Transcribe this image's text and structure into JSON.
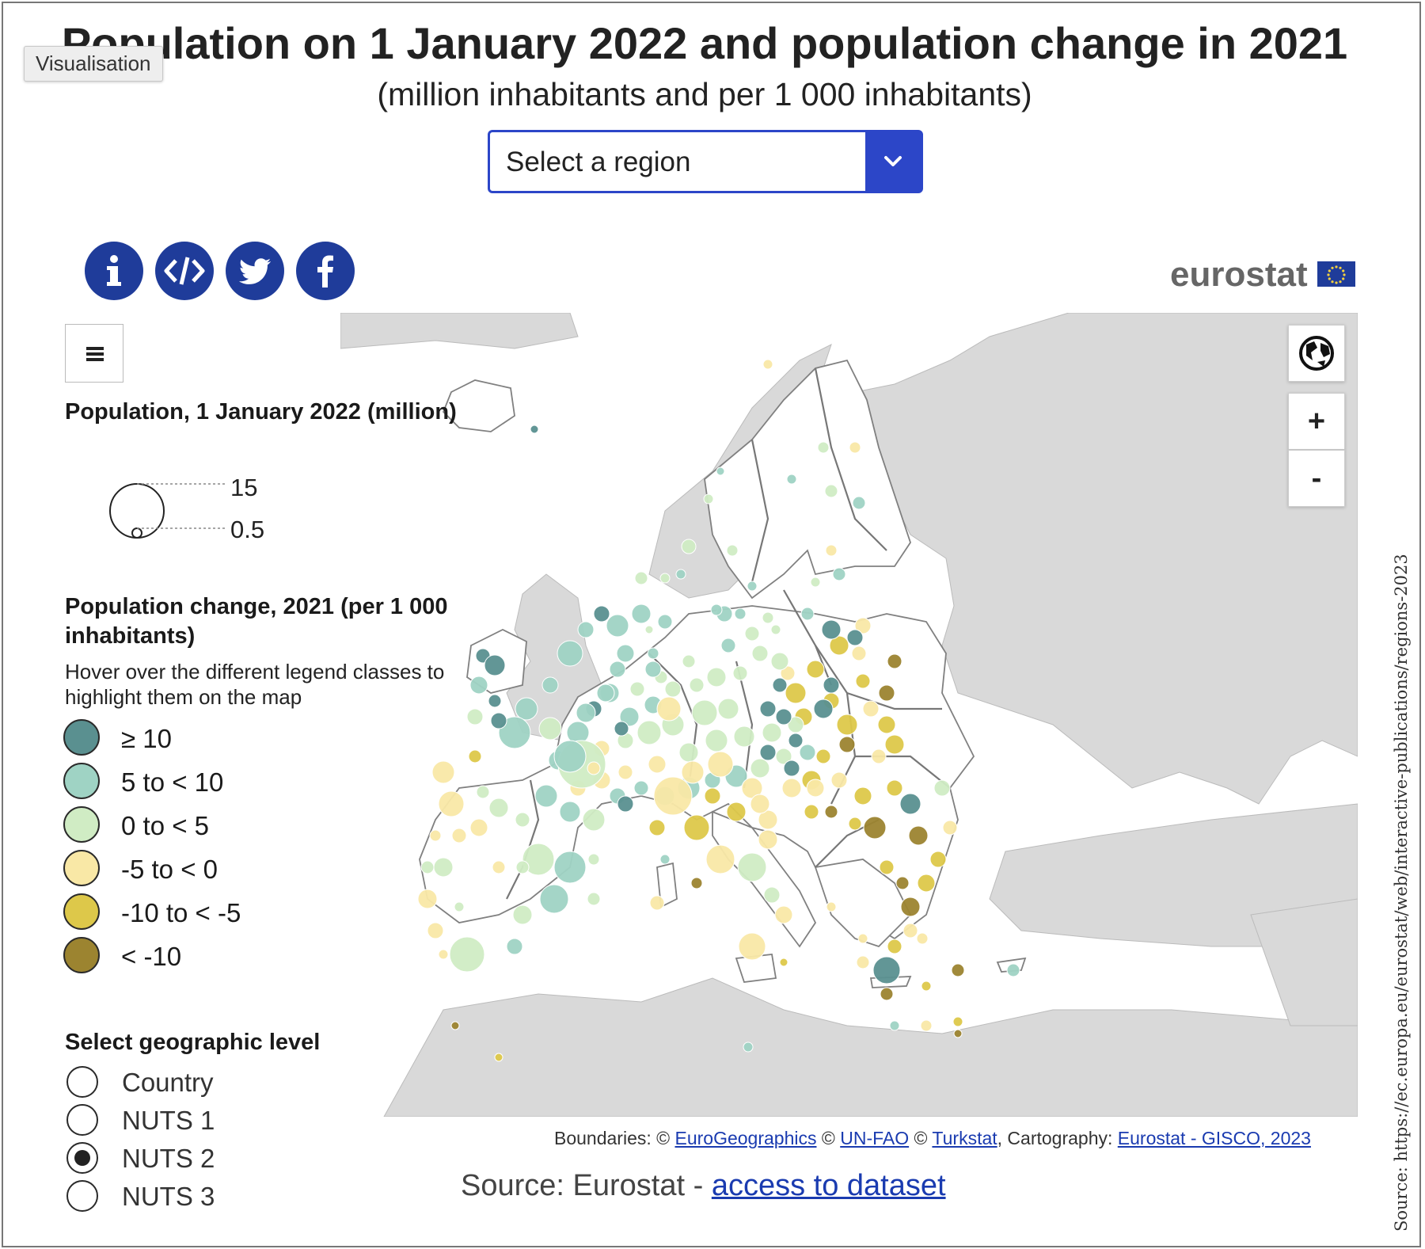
{
  "header": {
    "badge": "Visualisation",
    "title": "Population on 1 January 2022 and population change in 2021",
    "subtitle": "(million inhabitants and per 1 000 inhabitants)"
  },
  "region_select": {
    "selected": "Select a region"
  },
  "share_buttons": [
    {
      "icon": "info-icon"
    },
    {
      "icon": "embed-code-icon"
    },
    {
      "icon": "twitter-icon"
    },
    {
      "icon": "facebook-icon"
    }
  ],
  "brand": {
    "logo_text": "eurostat",
    "flag_color": "#1f3c9a"
  },
  "map_controls": {
    "globe_icon": "globe-icon",
    "zoom_in": "+",
    "zoom_out": "-",
    "menu_icon": "menu-icon"
  },
  "legend": {
    "size_title": "Population, 1 January 2022 (million)",
    "size_values": [
      "15",
      "0.5"
    ],
    "color_title": "Population change, 2021 (per 1 000 inhabitants)",
    "color_note": "Hover over the different legend classes to highlight them on the map",
    "classes": [
      {
        "label": "≥ 10",
        "color": "#5a9090"
      },
      {
        "label": "5 to < 10",
        "color": "#9fd3c4"
      },
      {
        "label": "0 to < 5",
        "color": "#d0ecc4"
      },
      {
        "label": "-5 to < 0",
        "color": "#f9e8a6"
      },
      {
        "label": "-10 to < -5",
        "color": "#ddc84a"
      },
      {
        "label": "< -10",
        "color": "#9c8430"
      }
    ]
  },
  "geo_level": {
    "title": "Select geographic level",
    "options": [
      "Country",
      "NUTS 1",
      "NUTS 2",
      "NUTS 3"
    ],
    "selected": "NUTS 2"
  },
  "credits": {
    "prefix": "Boundaries: © ",
    "link1": "EuroGeographics",
    "sep1": " © ",
    "link2": "UN-FAO",
    "sep2": " © ",
    "link3": "Turkstat",
    "mid": ", Cartography: ",
    "link4": "Eurostat - GISCO, 2023"
  },
  "source": {
    "prefix": "Source: Eurostat - ",
    "link": "access to dataset"
  },
  "vertical_source": "Source: https://ec.europa.eu/eurostat/web/interactive-publications/regions-2023",
  "colors": {
    "land": "#d9d9d9",
    "eu_land": "#ffffff",
    "border": "#888888",
    "accent_blue": "#2c46c8"
  }
}
